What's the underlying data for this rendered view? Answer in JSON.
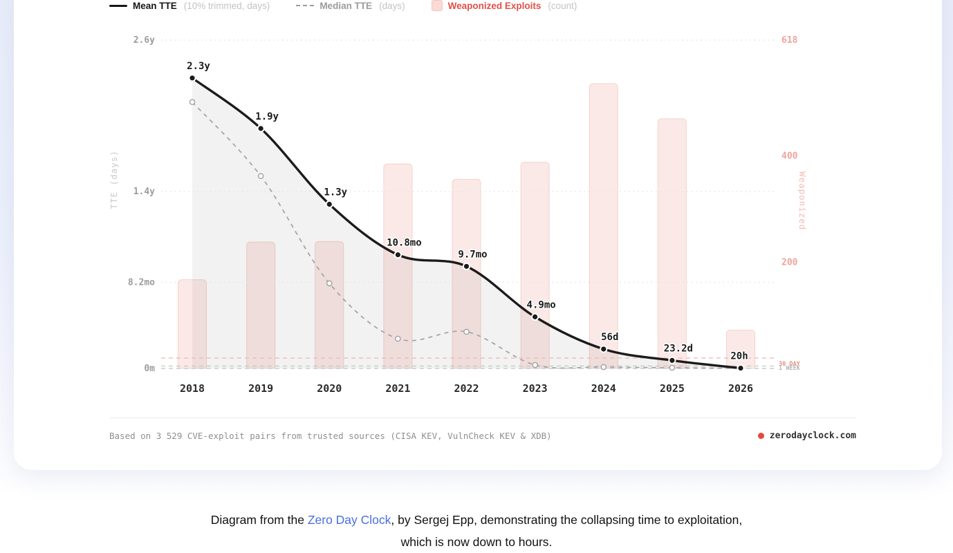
{
  "page": {
    "caption": {
      "line1_prefix": "Diagram from the ",
      "line1_link": "Zero Day Clock",
      "line1_suffix": ", by Sergej Epp, demonstrating the collapsing time to exploitation,",
      "line2": "which is now down to hours.",
      "link_color": "#4a6ee3"
    }
  },
  "legend": {
    "items": [
      {
        "label": "Mean TTE",
        "note": "(10% trimmed, days)",
        "swatch": "solid-line"
      },
      {
        "label": "Median TTE",
        "note": "(days)",
        "swatch": "dashed-line"
      },
      {
        "label": "Weaponized Exploits",
        "note": "(count)",
        "swatch": "pink-square"
      }
    ]
  },
  "footer": {
    "source_note": "Based on 3 529 CVE-exploit pairs from trusted sources (CISA KEV, VulnCheck KEV & XDB)",
    "brand": "zerodayclock.com"
  },
  "chart_data": {
    "type": "line+bar combo",
    "x": [
      2018,
      2019,
      2020,
      2021,
      2022,
      2023,
      2024,
      2025,
      2026
    ],
    "series": [
      {
        "name": "Mean TTE (10% trimmed, days)",
        "type": "line",
        "axis": "left",
        "values_days": [
          839.5,
          693.5,
          474.5,
          328.5,
          295.1,
          149.1,
          56,
          23.2,
          0.83
        ],
        "point_labels": [
          "2.3y",
          "1.9y",
          "1.3y",
          "10.8mo",
          "9.7mo",
          "4.9mo",
          "56d",
          "23.2d",
          "20h"
        ]
      },
      {
        "name": "Median TTE (days)",
        "type": "line-dashed",
        "axis": "left",
        "values_days": [
          770,
          556,
          246,
          86,
          106,
          10,
          4,
          2,
          0.5
        ]
      },
      {
        "name": "Weaponized Exploits (count)",
        "type": "bar",
        "axis": "right",
        "values": [
          167,
          238,
          239,
          385,
          356,
          388,
          536,
          470,
          72
        ]
      }
    ],
    "left_axis": {
      "title": "TTE (days)",
      "max_days": 949,
      "ticks": [
        {
          "label": "2.6y",
          "days": 949
        },
        {
          "label": "1.4y",
          "days": 511
        },
        {
          "label": "8.2mo",
          "days": 249
        },
        {
          "label": "0m",
          "days": 0
        }
      ]
    },
    "right_axis": {
      "title": "Weaponized",
      "max_count": 618,
      "ticks": [
        {
          "label": "618",
          "count": 618
        },
        {
          "label": "400",
          "count": 400
        },
        {
          "label": "200",
          "count": 200
        }
      ]
    },
    "thresholds": [
      {
        "label": "30 DAY",
        "days": 30,
        "line_color": "#f2b5ae",
        "text_color": "#e89188"
      },
      {
        "label": "1 WEEK",
        "days": 7,
        "line_color": "#c6c6c6",
        "text_color": "#b5b5b5"
      }
    ],
    "grid": "horizontal dotted at left-axis ticks",
    "legend_position": "top-left"
  },
  "colors": {
    "mean_line": "#1b1b1b",
    "median_line": "#a6a6a6",
    "bar_fill": "#fbe9e7",
    "bar_stroke": "#f5d2cc",
    "area_fill_rgba": "rgba(70,70,70,0.07)",
    "grid": "#e4e4e4",
    "baseline": "#cccccc",
    "left_tick": "#9c9c9c",
    "right_tick": "#f0a49c",
    "x_tick": "#2b2b2b",
    "point_label": "#1a1a1a",
    "accent_red": "#e8473b"
  }
}
